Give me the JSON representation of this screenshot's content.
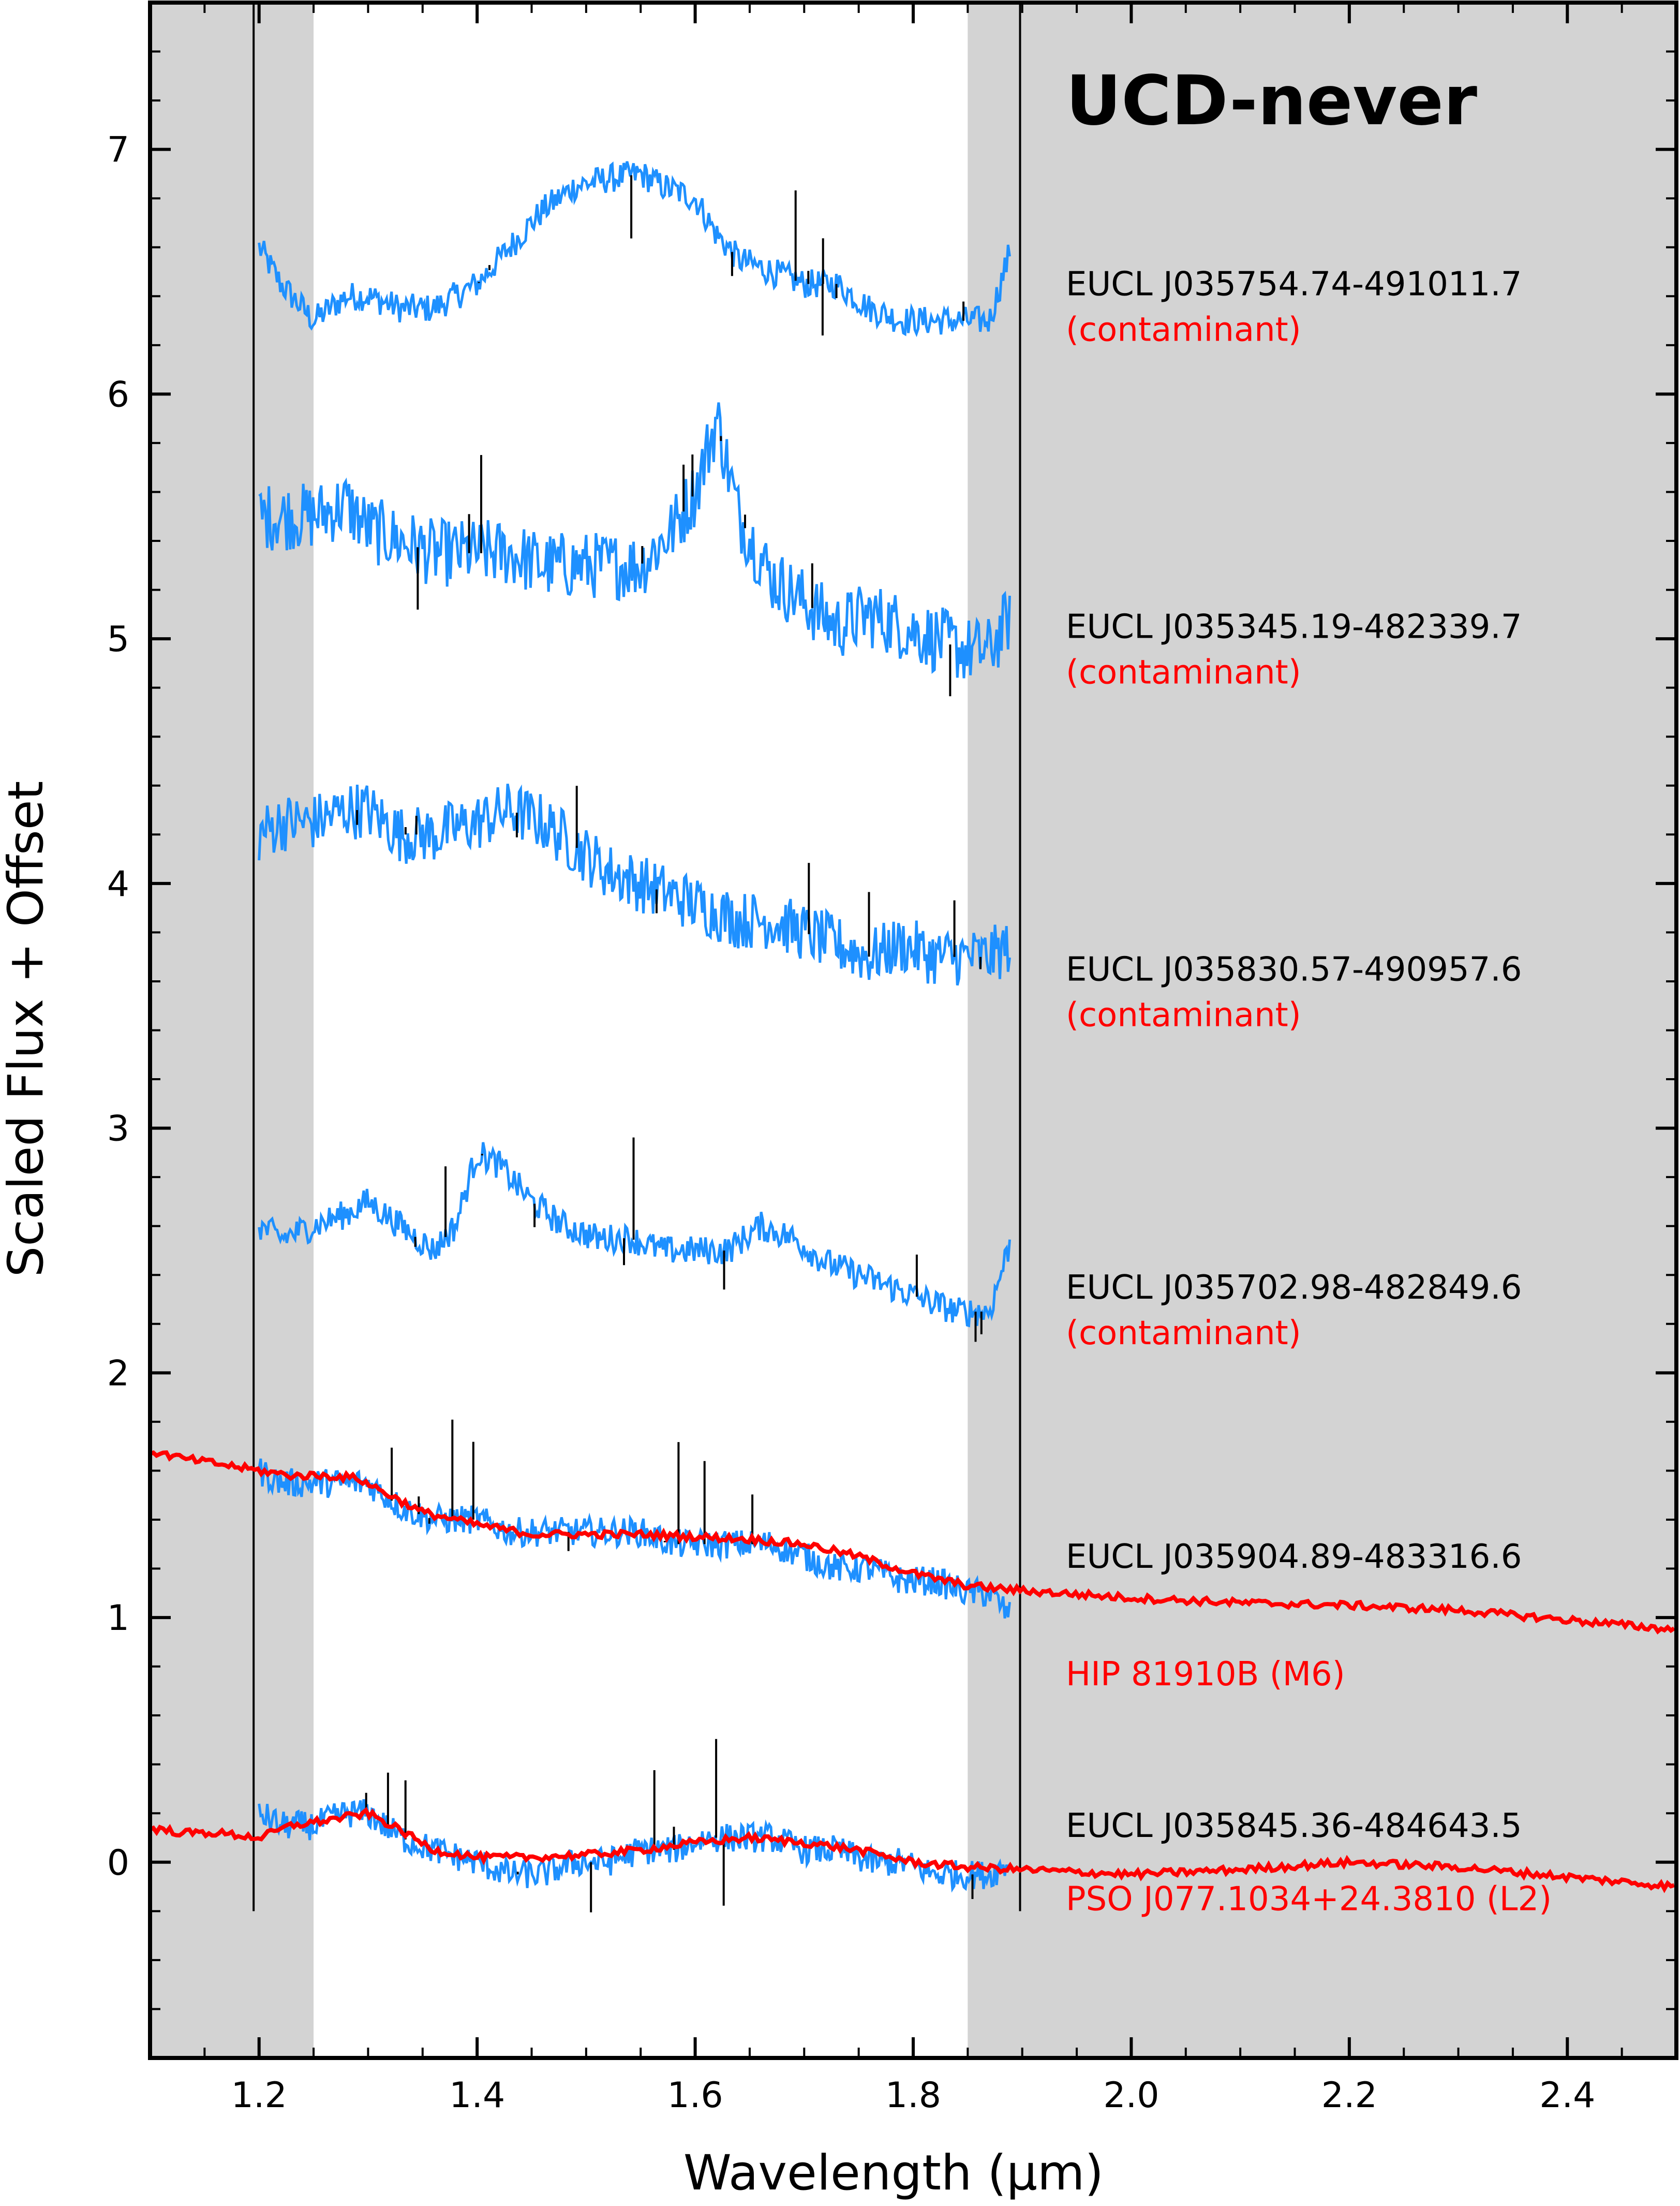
{
  "chart_data": {
    "type": "line",
    "title": "UCD-never",
    "xlabel": "Wavelength (μm)",
    "ylabel": "Scaled Flux + Offset",
    "xlim": [
      1.1,
      2.5
    ],
    "ylim": [
      -0.8,
      7.6
    ],
    "xticks": [
      1.2,
      1.4,
      1.6,
      1.8,
      2.0,
      2.2,
      2.4
    ],
    "xtick_labels": [
      "1.2",
      "1.4",
      "1.6",
      "1.8",
      "2.0",
      "2.2",
      "2.4"
    ],
    "yticks": [
      0,
      1,
      2,
      3,
      4,
      5,
      6,
      7
    ],
    "ytick_labels": [
      "0",
      "1",
      "2",
      "3",
      "4",
      "5",
      "6",
      "7"
    ],
    "masked_regions": [
      [
        1.1,
        1.25
      ],
      [
        1.85,
        2.5
      ]
    ],
    "colors": {
      "spectrum": "#1E90FF",
      "low_snr": "#000000",
      "standard": "#FF0000",
      "contaminant_label": "#FF0000",
      "mask": "#D3D3D3"
    },
    "series": [
      {
        "name": "EUCL J035754.74-491011.7",
        "note": "(contaminant)",
        "label_y": 6.45,
        "x": [
          1.2,
          1.22,
          1.25,
          1.28,
          1.3,
          1.33,
          1.36,
          1.4,
          1.43,
          1.46,
          1.49,
          1.52,
          1.55,
          1.57,
          1.6,
          1.62,
          1.64,
          1.67,
          1.7,
          1.73,
          1.76,
          1.79,
          1.82,
          1.85,
          1.87,
          1.89
        ],
        "values": [
          6.6,
          6.45,
          6.3,
          6.4,
          6.4,
          6.35,
          6.35,
          6.45,
          6.6,
          6.75,
          6.85,
          6.88,
          6.9,
          6.85,
          6.8,
          6.65,
          6.55,
          6.5,
          6.45,
          6.45,
          6.35,
          6.3,
          6.3,
          6.3,
          6.3,
          6.6
        ]
      },
      {
        "name": "EUCL J035345.19-482339.7",
        "note": "(contaminant)",
        "label_y": 5.05,
        "x": [
          1.2,
          1.22,
          1.25,
          1.28,
          1.3,
          1.33,
          1.36,
          1.4,
          1.43,
          1.46,
          1.49,
          1.52,
          1.55,
          1.58,
          1.6,
          1.62,
          1.64,
          1.67,
          1.7,
          1.73,
          1.76,
          1.79,
          1.82,
          1.85,
          1.87,
          1.89
        ],
        "values": [
          5.5,
          5.5,
          5.5,
          5.55,
          5.45,
          5.4,
          5.35,
          5.35,
          5.35,
          5.3,
          5.3,
          5.3,
          5.3,
          5.45,
          5.6,
          5.9,
          5.5,
          5.25,
          5.15,
          5.05,
          5.1,
          5.05,
          5.0,
          4.95,
          4.95,
          5.1
        ]
      },
      {
        "name": "EUCL J035830.57-490957.6",
        "note": "(contaminant)",
        "label_y": 3.65,
        "x": [
          1.2,
          1.22,
          1.25,
          1.28,
          1.3,
          1.33,
          1.36,
          1.4,
          1.43,
          1.46,
          1.49,
          1.52,
          1.55,
          1.58,
          1.61,
          1.64,
          1.67,
          1.7,
          1.73,
          1.76,
          1.79,
          1.82,
          1.85,
          1.87,
          1.89
        ],
        "values": [
          4.2,
          4.25,
          4.25,
          4.3,
          4.3,
          4.2,
          4.2,
          4.25,
          4.3,
          4.25,
          4.15,
          4.05,
          4.0,
          3.95,
          3.9,
          3.85,
          3.85,
          3.8,
          3.75,
          3.7,
          3.75,
          3.7,
          3.7,
          3.7,
          3.75
        ]
      },
      {
        "name": "EUCL J035702.98-482849.6",
        "note": "(contaminant)",
        "label_y": 2.35,
        "x": [
          1.2,
          1.22,
          1.25,
          1.28,
          1.3,
          1.33,
          1.36,
          1.38,
          1.4,
          1.42,
          1.45,
          1.48,
          1.51,
          1.54,
          1.57,
          1.6,
          1.63,
          1.66,
          1.69,
          1.72,
          1.75,
          1.78,
          1.81,
          1.84,
          1.87,
          1.89
        ],
        "values": [
          2.6,
          2.55,
          2.6,
          2.65,
          2.7,
          2.6,
          2.5,
          2.6,
          2.9,
          2.85,
          2.7,
          2.6,
          2.55,
          2.55,
          2.5,
          2.5,
          2.5,
          2.6,
          2.55,
          2.45,
          2.4,
          2.35,
          2.3,
          2.25,
          2.25,
          2.55
        ]
      },
      {
        "name": "EUCL J035904.89-483316.6",
        "note": "",
        "label_y": 1.25,
        "x": [
          1.2,
          1.22,
          1.25,
          1.28,
          1.3,
          1.33,
          1.36,
          1.4,
          1.43,
          1.46,
          1.49,
          1.52,
          1.55,
          1.58,
          1.61,
          1.64,
          1.67,
          1.7,
          1.73,
          1.76,
          1.79,
          1.82,
          1.85,
          1.87,
          1.89
        ],
        "values": [
          1.6,
          1.55,
          1.55,
          1.55,
          1.55,
          1.45,
          1.4,
          1.4,
          1.35,
          1.35,
          1.35,
          1.35,
          1.35,
          1.3,
          1.3,
          1.3,
          1.3,
          1.25,
          1.2,
          1.2,
          1.15,
          1.15,
          1.1,
          1.1,
          1.0
        ]
      },
      {
        "name": "EUCL J035845.36-484643.5",
        "note": "",
        "label_y": 0.15,
        "x": [
          1.2,
          1.22,
          1.25,
          1.28,
          1.3,
          1.33,
          1.36,
          1.4,
          1.43,
          1.46,
          1.49,
          1.52,
          1.55,
          1.58,
          1.61,
          1.64,
          1.67,
          1.7,
          1.73,
          1.76,
          1.79,
          1.82,
          1.85,
          1.87,
          1.89
        ],
        "values": [
          0.2,
          0.15,
          0.15,
          0.2,
          0.2,
          0.1,
          0.05,
          0.0,
          -0.05,
          -0.05,
          0.0,
          0.0,
          0.05,
          0.05,
          0.1,
          0.1,
          0.1,
          0.05,
          0.05,
          0.0,
          0.0,
          -0.05,
          -0.05,
          -0.05,
          0.0
        ]
      }
    ],
    "standards": [
      {
        "name": "HIP 81910B (M6)",
        "label_y": 0.77,
        "x": [
          1.1,
          1.13,
          1.16,
          1.2,
          1.23,
          1.26,
          1.29,
          1.32,
          1.35,
          1.4,
          1.45,
          1.5,
          1.55,
          1.6,
          1.65,
          1.7,
          1.75,
          1.8,
          1.85,
          1.9,
          2.0,
          2.1,
          2.2,
          2.3,
          2.4,
          2.5
        ],
        "values": [
          1.68,
          1.65,
          1.63,
          1.6,
          1.58,
          1.58,
          1.57,
          1.5,
          1.43,
          1.38,
          1.34,
          1.34,
          1.34,
          1.33,
          1.32,
          1.3,
          1.25,
          1.18,
          1.13,
          1.11,
          1.08,
          1.06,
          1.05,
          1.03,
          0.99,
          0.95
        ]
      },
      {
        "name": "PSO J077.1034+24.3810 (L2)",
        "label_y": -0.15,
        "x": [
          1.1,
          1.13,
          1.16,
          1.2,
          1.23,
          1.26,
          1.3,
          1.33,
          1.36,
          1.4,
          1.45,
          1.5,
          1.55,
          1.6,
          1.65,
          1.7,
          1.75,
          1.8,
          1.85,
          1.9,
          2.0,
          2.1,
          2.2,
          2.3,
          2.4,
          2.5
        ],
        "values": [
          0.14,
          0.12,
          0.12,
          0.1,
          0.15,
          0.17,
          0.2,
          0.13,
          0.05,
          0.02,
          0.02,
          0.03,
          0.05,
          0.08,
          0.1,
          0.08,
          0.05,
          0.0,
          -0.02,
          -0.03,
          -0.05,
          -0.03,
          0.0,
          -0.02,
          -0.06,
          -0.1
        ]
      }
    ]
  }
}
